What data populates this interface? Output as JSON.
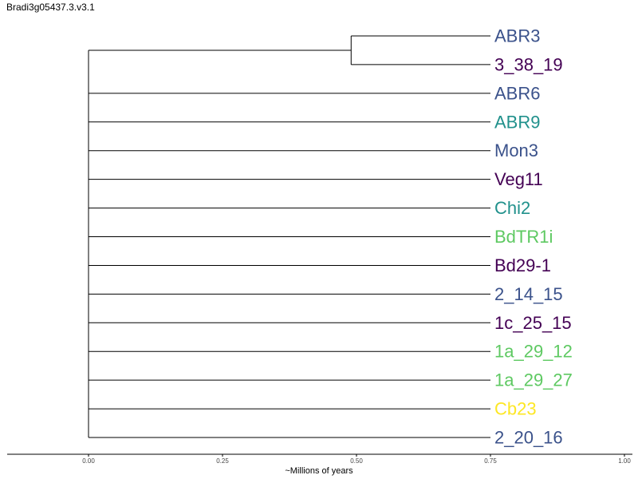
{
  "title": "Bradi3g05437.3.v3.1",
  "colors": {
    "blue": "#3b528b",
    "purple": "#440154",
    "teal": "#21918c",
    "green": "#5ec962",
    "yellow": "#fde725"
  },
  "chart_data": {
    "type": "dendrogram",
    "xlabel": "~Millions of years",
    "xlim": [
      0.0,
      1.0
    ],
    "ticks": [
      {
        "value": 0.0,
        "label": "0.00"
      },
      {
        "value": 0.25,
        "label": "0.25"
      },
      {
        "value": 0.5,
        "label": "0.50"
      },
      {
        "value": 0.75,
        "label": "0.75"
      },
      {
        "value": 1.0,
        "label": "1.00"
      }
    ],
    "root_node": 0.0,
    "tip_depth": 0.75,
    "clades": [
      {
        "node": 0.49,
        "leaves": [
          {
            "name": "ABR3",
            "color": "blue"
          },
          {
            "name": "3_38_19",
            "color": "purple"
          }
        ]
      }
    ],
    "leaves": [
      {
        "name": "ABR3",
        "color": "blue"
      },
      {
        "name": "3_38_19",
        "color": "purple"
      },
      {
        "name": "ABR6",
        "color": "blue"
      },
      {
        "name": "ABR9",
        "color": "teal"
      },
      {
        "name": "Mon3",
        "color": "blue"
      },
      {
        "name": "Veg11",
        "color": "purple"
      },
      {
        "name": "Chi2",
        "color": "teal"
      },
      {
        "name": "BdTR1i",
        "color": "green"
      },
      {
        "name": "Bd29-1",
        "color": "purple"
      },
      {
        "name": "2_14_15",
        "color": "blue"
      },
      {
        "name": "1c_25_15",
        "color": "purple"
      },
      {
        "name": "1a_29_12",
        "color": "green"
      },
      {
        "name": "1a_29_27",
        "color": "green"
      },
      {
        "name": "Cb23",
        "color": "yellow"
      },
      {
        "name": "2_20_16",
        "color": "blue"
      }
    ]
  }
}
